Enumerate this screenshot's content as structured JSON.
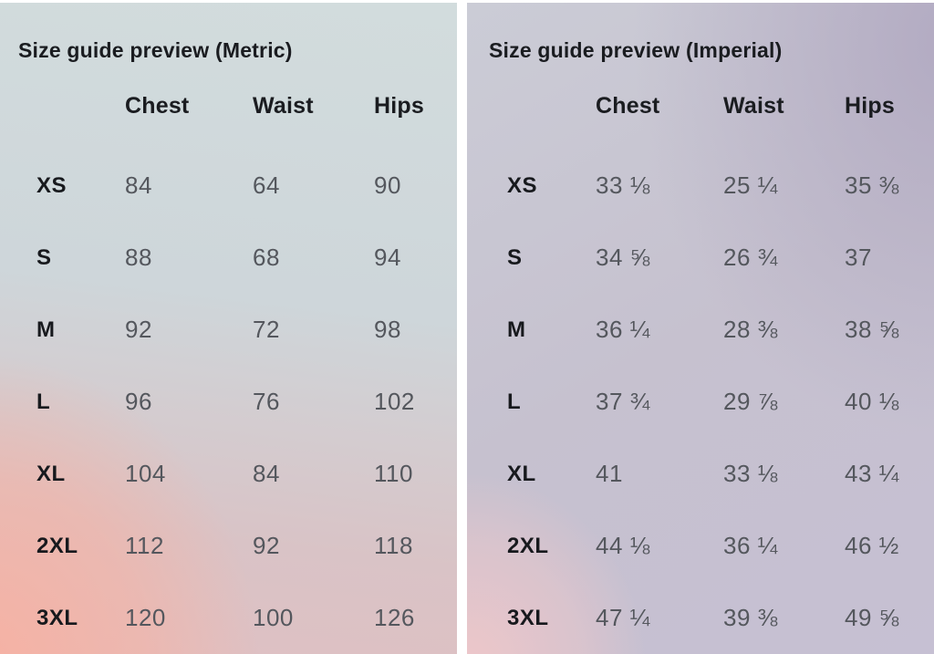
{
  "text_colors": {
    "heading": "#1a1c20",
    "value": "#54575d"
  },
  "panels": [
    {
      "title": "Size guide preview (Metric)",
      "columns": [
        "Chest",
        "Waist",
        "Hips"
      ],
      "rows": [
        {
          "size": "XS",
          "chest": "84",
          "waist": "64",
          "hips": "90"
        },
        {
          "size": "S",
          "chest": "88",
          "waist": "68",
          "hips": "94"
        },
        {
          "size": "M",
          "chest": "92",
          "waist": "72",
          "hips": "98"
        },
        {
          "size": "L",
          "chest": "96",
          "waist": "76",
          "hips": "102"
        },
        {
          "size": "XL",
          "chest": "104",
          "waist": "84",
          "hips": "110"
        },
        {
          "size": "2XL",
          "chest": "112",
          "waist": "92",
          "hips": "118"
        },
        {
          "size": "3XL",
          "chest": "120",
          "waist": "100",
          "hips": "126"
        }
      ],
      "background": {
        "top": "#d2dcdd",
        "bottom_left": "#f7b1a2",
        "bottom_right": "#dfc0c3"
      }
    },
    {
      "title": "Size guide preview (Imperial)",
      "columns": [
        "Chest",
        "Waist",
        "Hips"
      ],
      "rows": [
        {
          "size": "XS",
          "chest": "33 ⅛",
          "waist": "25 ¼",
          "hips": "35 ⅜"
        },
        {
          "size": "S",
          "chest": "34 ⅝",
          "waist": "26 ¾",
          "hips": "37"
        },
        {
          "size": "M",
          "chest": "36 ¼",
          "waist": "28 ⅜",
          "hips": "38 ⅝"
        },
        {
          "size": "L",
          "chest": "37 ¾",
          "waist": "29 ⅞",
          "hips": "40 ⅛"
        },
        {
          "size": "XL",
          "chest": "41",
          "waist": "33 ⅛",
          "hips": "43 ¼"
        },
        {
          "size": "2XL",
          "chest": "44 ⅛",
          "waist": "36 ¼",
          "hips": "46 ½"
        },
        {
          "size": "3XL",
          "chest": "47 ¼",
          "waist": "39 ⅜",
          "hips": "49 ⅝"
        }
      ],
      "background": {
        "top_left": "#cbccd6",
        "top_right": "#b5aec3",
        "bottom_left": "#eec4c6",
        "bottom_right": "#c5bfd2"
      }
    }
  ]
}
